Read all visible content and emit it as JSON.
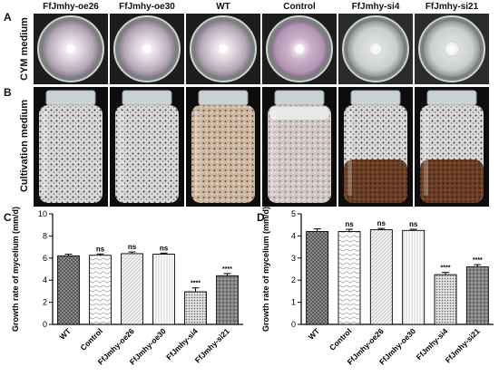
{
  "figure": {
    "panel_labels": [
      "A",
      "B",
      "C",
      "D"
    ],
    "row_labels": {
      "A": "CYM medium",
      "B": "Cultivation  medium"
    },
    "strains": [
      "FfJmhy-oe26",
      "FfJmhy-oe30",
      "WT",
      "Control",
      "FfJmhy-si4",
      "FfJmhy-si21"
    ]
  },
  "chart_data": [
    {
      "type": "bar",
      "panel": "C",
      "categories": [
        "WT",
        "Control",
        "FfJmhy-oe26",
        "FfJmhy-oe30",
        "FfJmhy-si4",
        "FfJmhy-si21"
      ],
      "values": [
        6.2,
        6.25,
        6.4,
        6.35,
        2.95,
        4.4
      ],
      "errors": [
        0.15,
        0.12,
        0.15,
        0.1,
        0.35,
        0.2
      ],
      "significance": [
        "",
        "ns",
        "ns",
        "ns",
        "****",
        "****"
      ],
      "ylabel": "Growth rate of mycelium (mm/d)",
      "ylim": [
        0,
        10
      ],
      "yticks": [
        "0",
        "2",
        "4",
        "6",
        "8",
        "10"
      ],
      "grid": false
    },
    {
      "type": "bar",
      "panel": "D",
      "categories": [
        "WT",
        "Control",
        "FfJmhy-oe26",
        "FfJmhy-oe30",
        "FfJmhy-si4",
        "FfJmhy-si21"
      ],
      "values": [
        4.2,
        4.2,
        4.28,
        4.25,
        2.25,
        2.6
      ],
      "errors": [
        0.12,
        0.1,
        0.06,
        0.05,
        0.1,
        0.1
      ],
      "significance": [
        "",
        "ns",
        "ns",
        "ns",
        "****",
        "****"
      ],
      "ylabel": "Growth rate of mycelium (mm/d)",
      "ylim": [
        0,
        5
      ],
      "yticks": [
        "0",
        "1",
        "2",
        "3",
        "4",
        "5"
      ],
      "grid": false
    }
  ]
}
